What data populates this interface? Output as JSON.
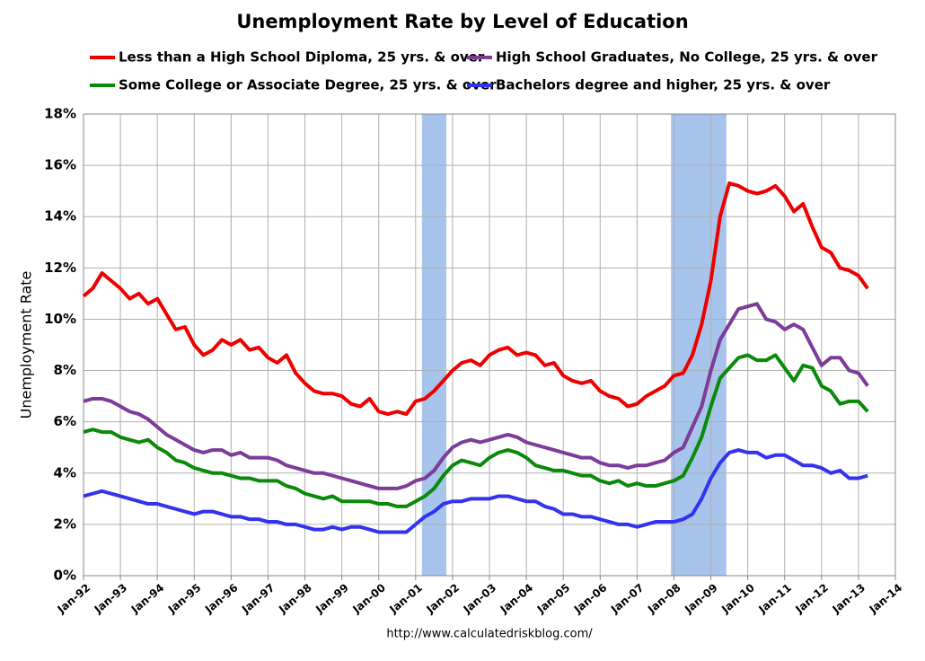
{
  "chart_data": {
    "type": "line",
    "title": "Unemployment Rate by Level of Education",
    "y_label": "Unemployment Rate",
    "source": "http://www.calculatedriskblog.com/",
    "xlim": [
      1992,
      2014
    ],
    "xticks": [
      {
        "value": 1992,
        "label": "Jan-92"
      },
      {
        "value": 1993,
        "label": "Jan-93"
      },
      {
        "value": 1994,
        "label": "Jan-94"
      },
      {
        "value": 1995,
        "label": "Jan-95"
      },
      {
        "value": 1996,
        "label": "Jan-96"
      },
      {
        "value": 1997,
        "label": "Jan-97"
      },
      {
        "value": 1998,
        "label": "Jan-98"
      },
      {
        "value": 1999,
        "label": "Jan-99"
      },
      {
        "value": 2000,
        "label": "Jan-00"
      },
      {
        "value": 2001,
        "label": "Jan-01"
      },
      {
        "value": 2002,
        "label": "Jan-02"
      },
      {
        "value": 2003,
        "label": "Jan-03"
      },
      {
        "value": 2004,
        "label": "Jan-04"
      },
      {
        "value": 2005,
        "label": "Jan-05"
      },
      {
        "value": 2006,
        "label": "Jan-06"
      },
      {
        "value": 2007,
        "label": "Jan-07"
      },
      {
        "value": 2008,
        "label": "Jan-08"
      },
      {
        "value": 2009,
        "label": "Jan-09"
      },
      {
        "value": 2010,
        "label": "Jan-10"
      },
      {
        "value": 2011,
        "label": "Jan-11"
      },
      {
        "value": 2012,
        "label": "Jan-12"
      },
      {
        "value": 2013,
        "label": "Jan-13"
      },
      {
        "value": 2014,
        "label": "Jan-14"
      }
    ],
    "ylim": [
      0,
      18
    ],
    "yticks": [
      {
        "value": 0,
        "label": "0%"
      },
      {
        "value": 2,
        "label": "2%"
      },
      {
        "value": 4,
        "label": "4%"
      },
      {
        "value": 6,
        "label": "6%"
      },
      {
        "value": 8,
        "label": "8%"
      },
      {
        "value": 10,
        "label": "10%"
      },
      {
        "value": 12,
        "label": "12%"
      },
      {
        "value": 14,
        "label": "14%"
      },
      {
        "value": 16,
        "label": "16%"
      },
      {
        "value": 18,
        "label": "18%"
      }
    ],
    "grid": true,
    "shaded_periods": [
      [
        2001.17,
        2001.83
      ],
      [
        2007.92,
        2009.42
      ]
    ],
    "shade_color": "#a6c4ec",
    "x": [
      1992,
      1992.25,
      1992.5,
      1992.75,
      1993,
      1993.25,
      1993.5,
      1993.75,
      1994,
      1994.25,
      1994.5,
      1994.75,
      1995,
      1995.25,
      1995.5,
      1995.75,
      1996,
      1996.25,
      1996.5,
      1996.75,
      1997,
      1997.25,
      1997.5,
      1997.75,
      1998,
      1998.25,
      1998.5,
      1998.75,
      1999,
      1999.25,
      1999.5,
      1999.75,
      2000,
      2000.25,
      2000.5,
      2000.75,
      2001,
      2001.25,
      2001.5,
      2001.75,
      2002,
      2002.25,
      2002.5,
      2002.75,
      2003,
      2003.25,
      2003.5,
      2003.75,
      2004,
      2004.25,
      2004.5,
      2004.75,
      2005,
      2005.25,
      2005.5,
      2005.75,
      2006,
      2006.25,
      2006.5,
      2006.75,
      2007,
      2007.25,
      2007.5,
      2007.75,
      2008,
      2008.25,
      2008.5,
      2008.75,
      2009,
      2009.25,
      2009.5,
      2009.75,
      2010,
      2010.25,
      2010.5,
      2010.75,
      2011,
      2011.25,
      2011.5,
      2011.75,
      2012,
      2012.25,
      2012.5,
      2012.75,
      2013,
      2013.25
    ],
    "series": [
      {
        "name": "Less than a High School Diploma, 25 yrs. & over",
        "color": "#ee0000",
        "values": [
          10.9,
          11.2,
          11.8,
          11.5,
          11.2,
          10.8,
          11.0,
          10.6,
          10.8,
          10.2,
          9.6,
          9.7,
          9.0,
          8.6,
          8.8,
          9.2,
          9.0,
          9.2,
          8.8,
          8.9,
          8.5,
          8.3,
          8.6,
          7.9,
          7.5,
          7.2,
          7.1,
          7.1,
          7.0,
          6.7,
          6.6,
          6.9,
          6.4,
          6.3,
          6.4,
          6.3,
          6.8,
          6.9,
          7.2,
          7.6,
          8.0,
          8.3,
          8.4,
          8.2,
          8.6,
          8.8,
          8.9,
          8.6,
          8.7,
          8.6,
          8.2,
          8.3,
          7.8,
          7.6,
          7.5,
          7.6,
          7.2,
          7.0,
          6.9,
          6.6,
          6.7,
          7.0,
          7.2,
          7.4,
          7.8,
          7.9,
          8.6,
          9.8,
          11.5,
          14.0,
          15.3,
          15.2,
          15.0,
          14.9,
          15.0,
          15.2,
          14.8,
          14.2,
          14.5,
          13.6,
          12.8,
          12.6,
          12.0,
          11.9,
          11.7,
          11.2
        ]
      },
      {
        "name": "High School Graduates, No College, 25 yrs. & over",
        "color": "#7d3c98",
        "values": [
          6.8,
          6.9,
          6.9,
          6.8,
          6.6,
          6.4,
          6.3,
          6.1,
          5.8,
          5.5,
          5.3,
          5.1,
          4.9,
          4.8,
          4.9,
          4.9,
          4.7,
          4.8,
          4.6,
          4.6,
          4.6,
          4.5,
          4.3,
          4.2,
          4.1,
          4.0,
          4.0,
          3.9,
          3.8,
          3.7,
          3.6,
          3.5,
          3.4,
          3.4,
          3.4,
          3.5,
          3.7,
          3.8,
          4.1,
          4.6,
          5.0,
          5.2,
          5.3,
          5.2,
          5.3,
          5.4,
          5.5,
          5.4,
          5.2,
          5.1,
          5.0,
          4.9,
          4.8,
          4.7,
          4.6,
          4.6,
          4.4,
          4.3,
          4.3,
          4.2,
          4.3,
          4.3,
          4.4,
          4.5,
          4.8,
          5.0,
          5.8,
          6.6,
          8.0,
          9.2,
          9.8,
          10.4,
          10.5,
          10.6,
          10.0,
          9.9,
          9.6,
          9.8,
          9.6,
          8.9,
          8.2,
          8.5,
          8.5,
          8.0,
          7.9,
          7.4
        ]
      },
      {
        "name": "Some College or Associate Degree, 25 yrs. & over",
        "color": "#0a8a0a",
        "values": [
          5.6,
          5.7,
          5.6,
          5.6,
          5.4,
          5.3,
          5.2,
          5.3,
          5.0,
          4.8,
          4.5,
          4.4,
          4.2,
          4.1,
          4.0,
          4.0,
          3.9,
          3.8,
          3.8,
          3.7,
          3.7,
          3.7,
          3.5,
          3.4,
          3.2,
          3.1,
          3.0,
          3.1,
          2.9,
          2.9,
          2.9,
          2.9,
          2.8,
          2.8,
          2.7,
          2.7,
          2.9,
          3.1,
          3.4,
          3.9,
          4.3,
          4.5,
          4.4,
          4.3,
          4.6,
          4.8,
          4.9,
          4.8,
          4.6,
          4.3,
          4.2,
          4.1,
          4.1,
          4.0,
          3.9,
          3.9,
          3.7,
          3.6,
          3.7,
          3.5,
          3.6,
          3.5,
          3.5,
          3.6,
          3.7,
          3.9,
          4.6,
          5.4,
          6.6,
          7.7,
          8.1,
          8.5,
          8.6,
          8.4,
          8.4,
          8.6,
          8.1,
          7.6,
          8.2,
          8.1,
          7.4,
          7.2,
          6.7,
          6.8,
          6.8,
          6.4
        ]
      },
      {
        "name": "Bachelors degree and higher, 25 yrs. & over",
        "color": "#3333ee",
        "values": [
          3.1,
          3.2,
          3.3,
          3.2,
          3.1,
          3.0,
          2.9,
          2.8,
          2.8,
          2.7,
          2.6,
          2.5,
          2.4,
          2.5,
          2.5,
          2.4,
          2.3,
          2.3,
          2.2,
          2.2,
          2.1,
          2.1,
          2.0,
          2.0,
          1.9,
          1.8,
          1.8,
          1.9,
          1.8,
          1.9,
          1.9,
          1.8,
          1.7,
          1.7,
          1.7,
          1.7,
          2.0,
          2.3,
          2.5,
          2.8,
          2.9,
          2.9,
          3.0,
          3.0,
          3.0,
          3.1,
          3.1,
          3.0,
          2.9,
          2.9,
          2.7,
          2.6,
          2.4,
          2.4,
          2.3,
          2.3,
          2.2,
          2.1,
          2.0,
          2.0,
          1.9,
          2.0,
          2.1,
          2.1,
          2.1,
          2.2,
          2.4,
          3.0,
          3.8,
          4.4,
          4.8,
          4.9,
          4.8,
          4.8,
          4.6,
          4.7,
          4.7,
          4.5,
          4.3,
          4.3,
          4.2,
          4.0,
          4.1,
          3.8,
          3.8,
          3.9
        ]
      }
    ]
  }
}
